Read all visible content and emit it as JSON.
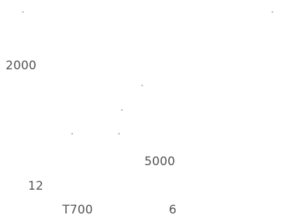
{
  "document": {
    "quote_marks": [
      "\"",
      "\"",
      "\"",
      "\"",
      "\"",
      "\""
    ],
    "text_items": [
      "2000",
      "5000",
      "12",
      "T700",
      "6"
    ]
  }
}
